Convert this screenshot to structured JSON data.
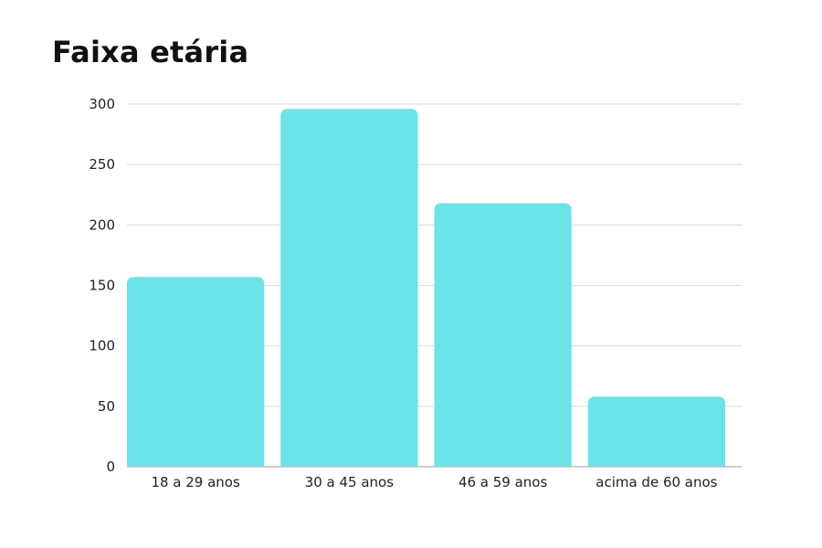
{
  "chart_data": {
    "type": "bar",
    "title": "Faixa etária",
    "categories": [
      "18 a 29 anos",
      "30 a 45 anos",
      "46 a 59 anos",
      "acima de 60 anos"
    ],
    "values": [
      157,
      296,
      218,
      58
    ],
    "xlabel": "",
    "ylabel": "",
    "ylim": [
      0,
      300
    ],
    "yticks": [
      0,
      50,
      100,
      150,
      200,
      250,
      300
    ],
    "grid": true,
    "legend": "none",
    "bar_color": "#6BE3E8",
    "grid_color": "#D9D9D9",
    "axis_color": "#BDBDBD"
  }
}
